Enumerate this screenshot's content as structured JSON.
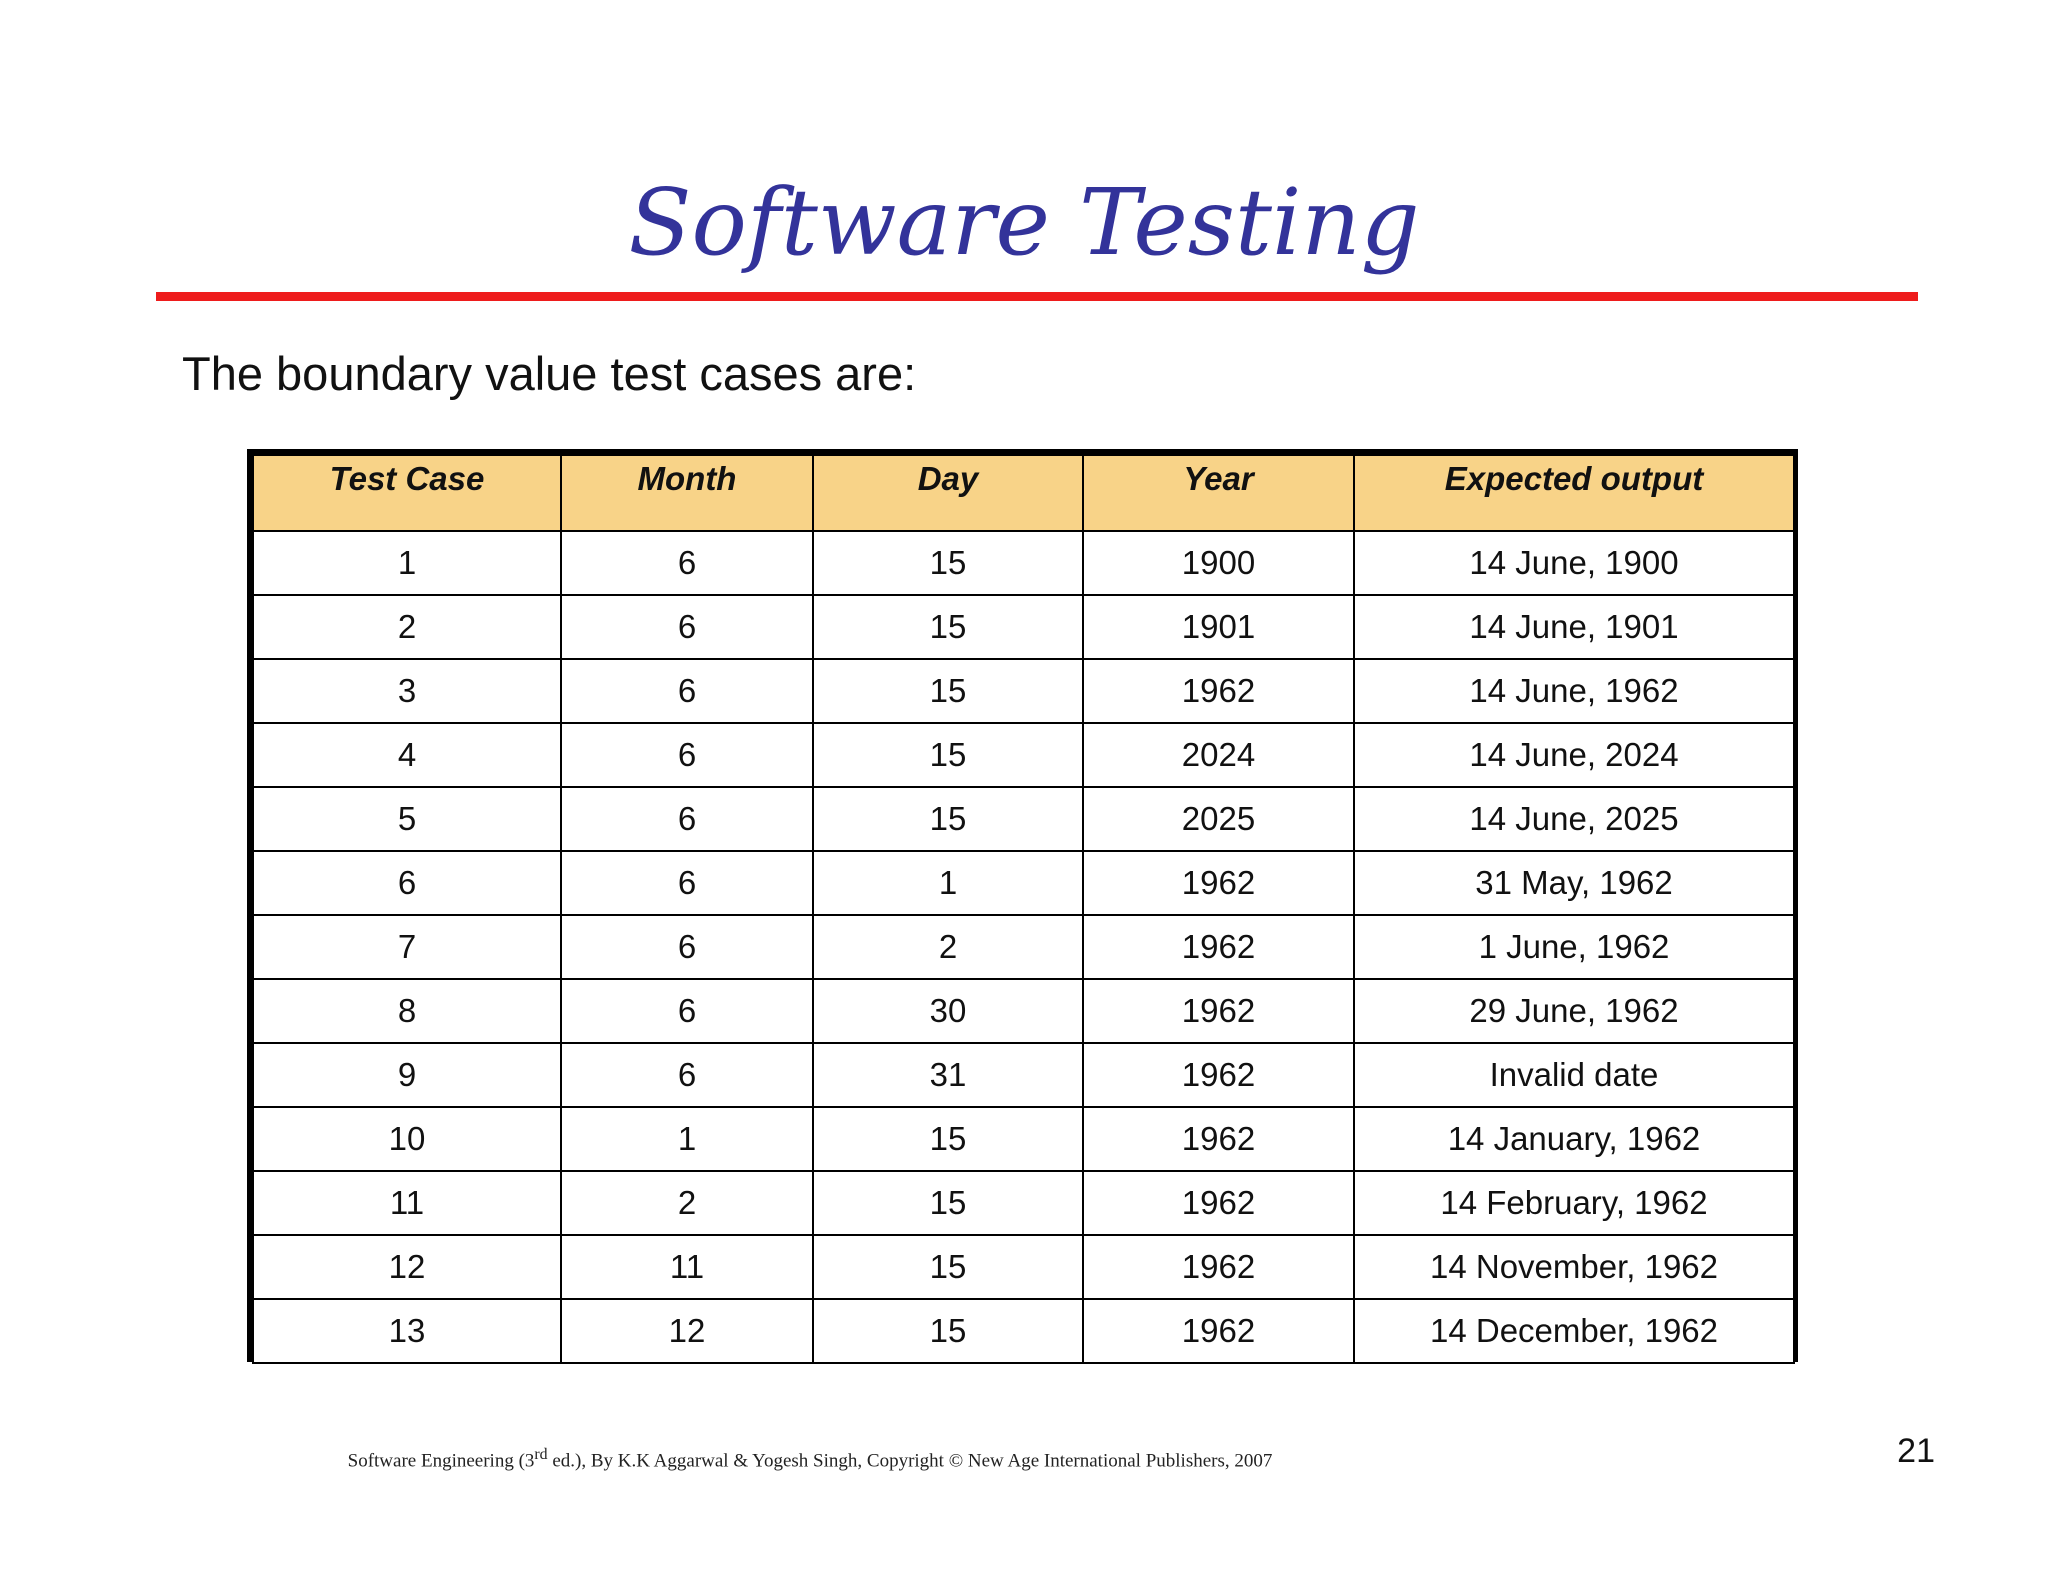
{
  "title": "Software Testing",
  "intro": "The boundary value test cases are:",
  "table": {
    "headers": [
      "Test Case",
      "Month",
      "Day",
      "Year",
      "Expected output"
    ],
    "rows": [
      [
        "1",
        "6",
        "15",
        "1900",
        "14 June, 1900"
      ],
      [
        "2",
        "6",
        "15",
        "1901",
        "14 June, 1901"
      ],
      [
        "3",
        "6",
        "15",
        "1962",
        "14 June, 1962"
      ],
      [
        "4",
        "6",
        "15",
        "2024",
        "14 June, 2024"
      ],
      [
        "5",
        "6",
        "15",
        "2025",
        "14 June, 2025"
      ],
      [
        "6",
        "6",
        "1",
        "1962",
        "31 May, 1962"
      ],
      [
        "7",
        "6",
        "2",
        "1962",
        "1 June, 1962"
      ],
      [
        "8",
        "6",
        "30",
        "1962",
        "29 June, 1962"
      ],
      [
        "9",
        "6",
        "31",
        "1962",
        "Invalid date"
      ],
      [
        "10",
        "1",
        "15",
        "1962",
        "14 January, 1962"
      ],
      [
        "11",
        "2",
        "15",
        "1962",
        "14 February, 1962"
      ],
      [
        "12",
        "11",
        "15",
        "1962",
        "14 November, 1962"
      ],
      [
        "13",
        "12",
        "15",
        "1962",
        "14 December, 1962"
      ]
    ]
  },
  "footer": {
    "prefix": "Software Engineering (3",
    "superscript": "rd",
    "suffix": " ed.), By K.K Aggarwal & Yogesh Singh, Copyright © New Age International Publishers, 2007"
  },
  "page_number": "21",
  "colors": {
    "title": "#33339a",
    "rule": "#ee1c1c",
    "header_fill": "#f8d388"
  }
}
